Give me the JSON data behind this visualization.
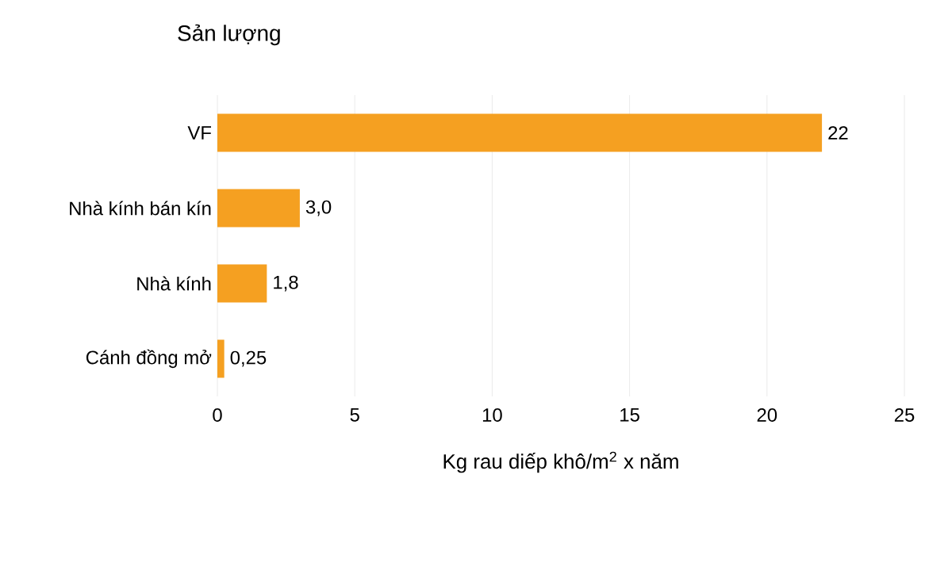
{
  "chart_data": {
    "type": "bar",
    "orientation": "horizontal",
    "title": "Sản lượng",
    "xlabel": "Kg rau diếp khô/m$^{2}$ x năm",
    "categories": [
      "VF",
      "Nhà kính bán kín",
      "Nhà kính",
      "Cánh đồng mở"
    ],
    "values": [
      22,
      3.0,
      1.8,
      0.25
    ],
    "value_labels": [
      "22",
      "3,0",
      "1,8",
      "0,25"
    ],
    "color": "#f5a021",
    "xlim": [
      0,
      25
    ],
    "xticks": [
      0,
      5,
      10,
      15,
      20,
      25
    ],
    "grid": "x"
  }
}
